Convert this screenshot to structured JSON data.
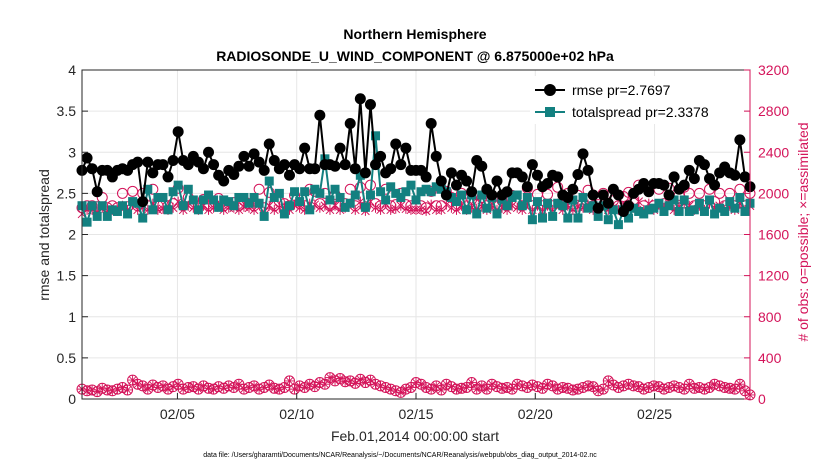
{
  "chart_data": {
    "type": "line",
    "title": "Northern Hemisphere",
    "subtitle": "RADIOSONDE_U_WIND_COMPONENT @ 6.875000e+02 hPa",
    "xlabel": "Feb.01,2014 00:00:00 start",
    "ylabel": "rmse and totalspread",
    "ylabel_right": "# of obs: o=possible; ×=assimilated",
    "footnote": "data file: /Users/gharamti/Documents/NCAR/Reanalysis/~/Documents/NCAR/Reanalysis/webpub/obs_diag_output_2014-02.nc",
    "xlim": [
      1,
      29
    ],
    "ylim": [
      0,
      4
    ],
    "ylim_right": [
      0,
      3200
    ],
    "x_ticks": [
      5,
      10,
      15,
      20,
      25
    ],
    "x_tick_labels": [
      "02/05",
      "02/10",
      "02/15",
      "02/20",
      "02/25"
    ],
    "y_ticks": [
      0,
      0.5,
      1,
      1.5,
      2,
      2.5,
      3,
      3.5,
      4
    ],
    "y_tick_labels": [
      "0",
      "0.5",
      "1",
      "1.5",
      "2",
      "2.5",
      "3",
      "3.5",
      "4"
    ],
    "y_right_ticks": [
      0,
      400,
      800,
      1200,
      1600,
      2000,
      2400,
      2800,
      3200
    ],
    "y_right_tick_labels": [
      "0",
      "400",
      "800",
      "1200",
      "1600",
      "2000",
      "2400",
      "2800",
      "3200"
    ],
    "grid": true,
    "legend_position": "top-right",
    "colors": {
      "rmse": "#000000",
      "totalspread": "#138080",
      "obs": "#d4145a",
      "grid": "#e6e6e6"
    },
    "series": [
      {
        "name": "rmse pr=2.7697",
        "axis": "left",
        "marker": "circle",
        "values": [
          2.78,
          2.93,
          2.8,
          2.52,
          2.78,
          2.78,
          2.7,
          2.78,
          2.8,
          2.78,
          2.85,
          2.88,
          2.4,
          2.88,
          2.75,
          2.85,
          2.85,
          2.7,
          2.9,
          3.25,
          2.9,
          2.85,
          2.95,
          2.88,
          2.8,
          3.0,
          2.85,
          2.72,
          2.65,
          2.78,
          2.73,
          2.83,
          2.95,
          2.83,
          2.98,
          2.88,
          2.78,
          3.1,
          2.9,
          2.8,
          2.85,
          2.72,
          2.85,
          2.8,
          3.05,
          2.8,
          2.8,
          3.45,
          2.85,
          2.85,
          2.83,
          3.05,
          2.85,
          3.35,
          2.8,
          3.65,
          2.75,
          3.58,
          2.85,
          2.95,
          2.75,
          2.8,
          3.1,
          2.85,
          3.05,
          2.78,
          2.78,
          2.78,
          2.7,
          3.35,
          2.95,
          2.65,
          2.48,
          2.75,
          2.6,
          2.72,
          2.65,
          2.52,
          2.9,
          2.83,
          2.55,
          2.48,
          2.65,
          2.48,
          2.52,
          2.75,
          2.75,
          2.7,
          2.58,
          2.85,
          2.72,
          2.58,
          2.62,
          2.72,
          2.7,
          2.48,
          2.45,
          2.55,
          2.73,
          2.98,
          2.78,
          2.48,
          2.32,
          2.48,
          2.38,
          2.55,
          2.48,
          2.28,
          2.35,
          2.5,
          2.55,
          2.62,
          2.52,
          2.62,
          2.62,
          2.6,
          2.48,
          2.7,
          2.55,
          2.6,
          2.78,
          2.68,
          2.9,
          2.85,
          2.68,
          2.6,
          2.75,
          2.82,
          2.75,
          2.72,
          3.15,
          2.7,
          2.58
        ]
      },
      {
        "name": "totalspread pr=2.3378",
        "axis": "left",
        "marker": "square",
        "values": [
          2.35,
          2.15,
          2.35,
          2.22,
          2.35,
          2.22,
          2.3,
          2.28,
          2.35,
          2.25,
          2.4,
          2.38,
          2.2,
          2.55,
          2.3,
          2.45,
          2.45,
          2.3,
          2.52,
          2.6,
          2.35,
          2.55,
          2.42,
          2.3,
          2.42,
          2.48,
          2.42,
          2.33,
          2.42,
          2.4,
          2.35,
          2.45,
          2.45,
          2.38,
          2.45,
          2.38,
          2.22,
          2.65,
          2.45,
          2.5,
          2.25,
          2.35,
          2.52,
          2.4,
          2.52,
          2.3,
          2.55,
          2.5,
          2.92,
          2.42,
          2.55,
          2.45,
          2.33,
          2.38,
          2.48,
          2.72,
          2.33,
          2.48,
          3.2,
          2.52,
          2.42,
          2.58,
          2.5,
          2.45,
          2.52,
          2.6,
          2.42,
          2.52,
          2.55,
          2.52,
          2.58,
          2.55,
          2.52,
          2.45,
          2.4,
          2.48,
          2.3,
          2.48,
          2.25,
          2.48,
          2.32,
          2.45,
          2.25,
          2.43,
          2.35,
          2.45,
          2.48,
          2.35,
          2.45,
          2.18,
          2.4,
          2.2,
          2.38,
          2.22,
          2.38,
          2.35,
          2.2,
          2.42,
          2.2,
          2.45,
          2.32,
          2.35,
          2.22,
          2.35,
          2.18,
          2.3,
          2.12,
          2.3,
          2.2,
          2.32,
          2.28,
          2.25,
          2.3,
          2.32,
          2.38,
          2.28,
          2.35,
          2.42,
          2.28,
          2.42,
          2.28,
          2.3,
          2.38,
          2.28,
          2.42,
          2.25,
          2.32,
          2.28,
          2.4,
          2.32,
          2.45,
          2.28,
          2.38
        ]
      },
      {
        "name": "obs possible",
        "axis": "right",
        "marker": "open-circle",
        "values": [
          1860,
          1880,
          1880,
          1870,
          1960,
          1860,
          1880,
          1860,
          2000,
          1870,
          2020,
          1880,
          2000,
          1880,
          2040,
          1880,
          1890,
          1880,
          1900,
          2050,
          1880,
          1960,
          1900,
          1880,
          1940,
          1880,
          1900,
          1950,
          1880,
          1900,
          1910,
          1880,
          1930,
          1900,
          1880,
          2040,
          1860,
          2010,
          1880,
          1920,
          1900,
          1880,
          1980,
          1900,
          1880,
          2040,
          2020,
          1900,
          2000,
          1880,
          1990,
          1880,
          1900,
          2040,
          1880,
          2060,
          1870,
          2080,
          1900,
          1880,
          2040,
          1880,
          1890,
          2000,
          1890,
          1880,
          1880,
          1880,
          1860,
          2020,
          1880,
          1880,
          2020,
          1960,
          1880,
          2000,
          1880,
          1940,
          1890,
          1960,
          1880,
          1980,
          1880,
          1930,
          1880,
          1980,
          1900,
          1880,
          2050,
          1880,
          1990,
          1880,
          1990,
          1880,
          2060,
          1880,
          2000,
          1880,
          1980,
          1900,
          2030,
          1880,
          1890,
          2000,
          1880,
          1930,
          1880,
          1970,
          2010,
          1920,
          2080,
          1880,
          2050,
          1880,
          2040,
          1900,
          2050,
          1880,
          1980,
          2060,
          2000,
          1880,
          2000,
          1880,
          2040,
          1920,
          2000,
          1880,
          2000,
          1880,
          2040,
          1880,
          2000
        ]
      },
      {
        "name": "obs assimilated",
        "axis": "right",
        "marker": "x",
        "values": [
          1800,
          1840,
          1840,
          1820,
          1860,
          1830,
          1840,
          1830,
          1880,
          1840,
          1890,
          1840,
          1870,
          1840,
          1900,
          1840,
          1850,
          1840,
          1860,
          1920,
          1840,
          1880,
          1860,
          1840,
          1880,
          1840,
          1860,
          1880,
          1840,
          1860,
          1860,
          1840,
          1870,
          1860,
          1840,
          1900,
          1820,
          1880,
          1840,
          1860,
          1860,
          1840,
          1890,
          1860,
          1840,
          1900,
          1890,
          1860,
          1880,
          1840,
          1880,
          1840,
          1860,
          1900,
          1840,
          1920,
          1830,
          1920,
          1860,
          1840,
          1900,
          1840,
          1850,
          1880,
          1850,
          1840,
          1840,
          1840,
          1830,
          1890,
          1840,
          1840,
          1890,
          1860,
          1840,
          1880,
          1840,
          1860,
          1850,
          1870,
          1840,
          1880,
          1840,
          1860,
          1840,
          1880,
          1860,
          1840,
          1900,
          1840,
          1880,
          1840,
          1880,
          1840,
          1900,
          1840,
          1880,
          1840,
          1870,
          1860,
          1890,
          1840,
          1850,
          1880,
          1840,
          1860,
          1840,
          1870,
          1880,
          1860,
          1920,
          1840,
          1900,
          1840,
          1890,
          1860,
          1900,
          1840,
          1870,
          1900,
          1880,
          1840,
          1880,
          1840,
          1900,
          1860,
          1880,
          1840,
          1880,
          1840,
          1900,
          1840,
          1880
        ]
      },
      {
        "name": "obs possible (bottom)",
        "axis": "left",
        "marker": "open-circle",
        "values": [
          0.12,
          0.1,
          0.11,
          0.09,
          0.13,
          0.11,
          0.1,
          0.12,
          0.14,
          0.11,
          0.23,
          0.18,
          0.16,
          0.12,
          0.17,
          0.14,
          0.16,
          0.12,
          0.15,
          0.18,
          0.12,
          0.14,
          0.15,
          0.12,
          0.16,
          0.13,
          0.12,
          0.15,
          0.13,
          0.16,
          0.14,
          0.18,
          0.12,
          0.14,
          0.16,
          0.12,
          0.14,
          0.17,
          0.13,
          0.12,
          0.14,
          0.22,
          0.12,
          0.16,
          0.14,
          0.18,
          0.15,
          0.2,
          0.18,
          0.26,
          0.22,
          0.25,
          0.21,
          0.22,
          0.19,
          0.24,
          0.2,
          0.23,
          0.18,
          0.16,
          0.14,
          0.12,
          0.1,
          0.08,
          0.12,
          0.14,
          0.2,
          0.18,
          0.14,
          0.12,
          0.16,
          0.11,
          0.18,
          0.15,
          0.12,
          0.13,
          0.14,
          0.2,
          0.12,
          0.16,
          0.12,
          0.18,
          0.15,
          0.13,
          0.14,
          0.12,
          0.18,
          0.16,
          0.14,
          0.17,
          0.15,
          0.13,
          0.18,
          0.16,
          0.12,
          0.14,
          0.13,
          0.11,
          0.12,
          0.14,
          0.16,
          0.15,
          0.1,
          0.12,
          0.22,
          0.17,
          0.14,
          0.16,
          0.18,
          0.16,
          0.15,
          0.12,
          0.14,
          0.16,
          0.15,
          0.12,
          0.14,
          0.16,
          0.14,
          0.12,
          0.18,
          0.13,
          0.14,
          0.12,
          0.14,
          0.18,
          0.16,
          0.14,
          0.13,
          0.12,
          0.18,
          0.1,
          0.05
        ]
      }
    ]
  }
}
